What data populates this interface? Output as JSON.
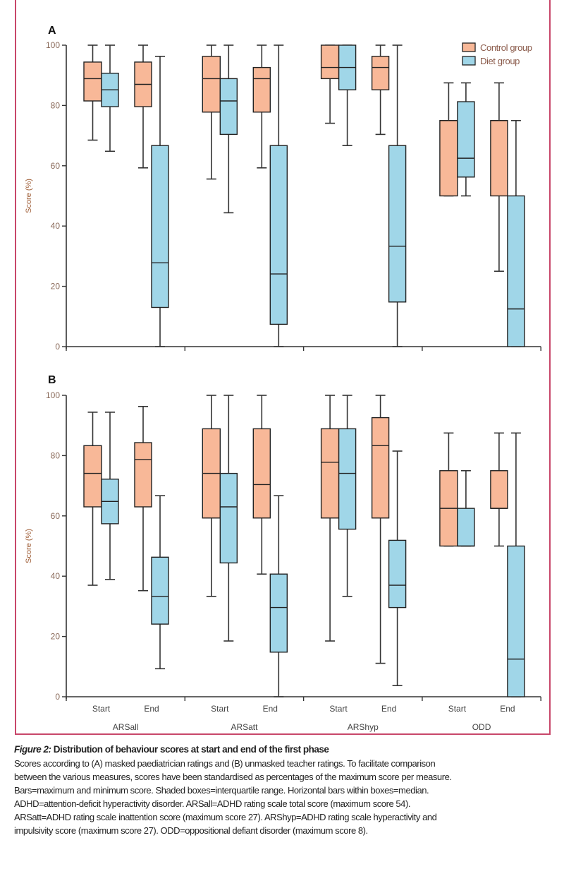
{
  "chart_data": [
    {
      "type": "boxplot",
      "panel_label": "A",
      "ylabel": "Score (%)",
      "ylim": [
        0,
        100
      ],
      "yticks": [
        "0",
        "20",
        "40",
        "60",
        "80",
        "100"
      ],
      "groups": [
        "ARSall",
        "ARSatt",
        "ARShyp",
        "ODD"
      ],
      "timepoints": [
        "Start",
        "End"
      ],
      "series": [
        {
          "name": "Control group",
          "color": "#F8B898",
          "boxes": [
            {
              "group": "ARSall",
              "time": "Start",
              "min": 68.5,
              "q1": 81.5,
              "median": 88.9,
              "q3": 94.4,
              "max": 100
            },
            {
              "group": "ARSall",
              "time": "End",
              "min": 59.3,
              "q1": 79.6,
              "median": 87,
              "q3": 94.4,
              "max": 100
            },
            {
              "group": "ARSatt",
              "time": "Start",
              "min": 55.6,
              "q1": 77.8,
              "median": 88.9,
              "q3": 96.3,
              "max": 100
            },
            {
              "group": "ARSatt",
              "time": "End",
              "min": 59.3,
              "q1": 77.8,
              "median": 88.9,
              "q3": 92.6,
              "max": 100
            },
            {
              "group": "ARShyp",
              "time": "Start",
              "min": 74.1,
              "q1": 88.9,
              "median": 92.6,
              "q3": 100,
              "max": 100
            },
            {
              "group": "ARShyp",
              "time": "End",
              "min": 70.4,
              "q1": 85.2,
              "median": 92.6,
              "q3": 96.3,
              "max": 100
            },
            {
              "group": "ODD",
              "time": "Start",
              "min": 50,
              "q1": 50,
              "median": 75,
              "q3": 75,
              "max": 87.5
            },
            {
              "group": "ODD",
              "time": "End",
              "min": 25,
              "q1": 50,
              "median": 75,
              "q3": 75,
              "max": 87.5
            }
          ]
        },
        {
          "name": "Diet group",
          "color": "#A0D6E8",
          "boxes": [
            {
              "group": "ARSall",
              "time": "Start",
              "min": 64.8,
              "q1": 79.6,
              "median": 85.2,
              "q3": 90.7,
              "max": 100
            },
            {
              "group": "ARSall",
              "time": "End",
              "min": 0,
              "q1": 13,
              "median": 27.8,
              "q3": 66.7,
              "max": 96.3
            },
            {
              "group": "ARSatt",
              "time": "Start",
              "min": 44.4,
              "q1": 70.4,
              "median": 81.5,
              "q3": 88.9,
              "max": 100
            },
            {
              "group": "ARSatt",
              "time": "End",
              "min": 0,
              "q1": 7.4,
              "median": 24.1,
              "q3": 66.7,
              "max": 100
            },
            {
              "group": "ARShyp",
              "time": "Start",
              "min": 66.7,
              "q1": 85.2,
              "median": 92.6,
              "q3": 100,
              "max": 100
            },
            {
              "group": "ARShyp",
              "time": "End",
              "min": 0,
              "q1": 14.8,
              "median": 33.3,
              "q3": 66.7,
              "max": 100
            },
            {
              "group": "ODD",
              "time": "Start",
              "min": 50,
              "q1": 56.25,
              "median": 62.5,
              "q3": 81.25,
              "max": 87.5
            },
            {
              "group": "ODD",
              "time": "End",
              "min": 0,
              "q1": 0,
              "median": 12.5,
              "q3": 50,
              "max": 75
            }
          ]
        }
      ],
      "legend": {
        "placement": "top-right",
        "entries": [
          "Control group",
          "Diet group"
        ]
      }
    },
    {
      "type": "boxplot",
      "panel_label": "B",
      "ylabel": "Score (%)",
      "ylim": [
        0,
        100
      ],
      "yticks": [
        "0",
        "20",
        "40",
        "60",
        "80",
        "100"
      ],
      "groups": [
        "ARSall",
        "ARSatt",
        "ARShyp",
        "ODD"
      ],
      "timepoints": [
        "Start",
        "End"
      ],
      "series": [
        {
          "name": "Control group",
          "color": "#F8B898",
          "boxes": [
            {
              "group": "ARSall",
              "time": "Start",
              "min": 37,
              "q1": 63,
              "median": 74.1,
              "q3": 83.3,
              "max": 94.4
            },
            {
              "group": "ARSall",
              "time": "End",
              "min": 35.2,
              "q1": 63,
              "median": 78.7,
              "q3": 84.3,
              "max": 96.3
            },
            {
              "group": "ARSatt",
              "time": "Start",
              "min": 33.3,
              "q1": 59.3,
              "median": 74.1,
              "q3": 88.9,
              "max": 100
            },
            {
              "group": "ARSatt",
              "time": "End",
              "min": 40.7,
              "q1": 59.3,
              "median": 70.4,
              "q3": 88.9,
              "max": 100
            },
            {
              "group": "ARShyp",
              "time": "Start",
              "min": 18.5,
              "q1": 59.3,
              "median": 77.8,
              "q3": 88.9,
              "max": 100
            },
            {
              "group": "ARShyp",
              "time": "End",
              "min": 11.1,
              "q1": 59.3,
              "median": 83.3,
              "q3": 92.6,
              "max": 100
            },
            {
              "group": "ODD",
              "time": "Start",
              "min": 50,
              "q1": 50,
              "median": 62.5,
              "q3": 75,
              "max": 87.5
            },
            {
              "group": "ODD",
              "time": "End",
              "min": 50,
              "q1": 62.5,
              "median": 62.5,
              "q3": 75,
              "max": 87.5
            }
          ]
        },
        {
          "name": "Diet group",
          "color": "#A0D6E8",
          "boxes": [
            {
              "group": "ARSall",
              "time": "Start",
              "min": 38.9,
              "q1": 57.4,
              "median": 64.8,
              "q3": 72.2,
              "max": 94.4
            },
            {
              "group": "ARSall",
              "time": "End",
              "min": 9.3,
              "q1": 24.1,
              "median": 33.3,
              "q3": 46.3,
              "max": 66.7
            },
            {
              "group": "ARSatt",
              "time": "Start",
              "min": 18.5,
              "q1": 44.4,
              "median": 63,
              "q3": 74.1,
              "max": 100
            },
            {
              "group": "ARSatt",
              "time": "End",
              "min": 0,
              "q1": 14.8,
              "median": 29.6,
              "q3": 40.7,
              "max": 66.7
            },
            {
              "group": "ARShyp",
              "time": "Start",
              "min": 33.3,
              "q1": 55.6,
              "median": 74.1,
              "q3": 88.9,
              "max": 100
            },
            {
              "group": "ARShyp",
              "time": "End",
              "min": 3.7,
              "q1": 29.6,
              "median": 37,
              "q3": 51.9,
              "max": 81.5
            },
            {
              "group": "ODD",
              "time": "Start",
              "min": 50,
              "q1": 50,
              "median": 50,
              "q3": 62.5,
              "max": 75
            },
            {
              "group": "ODD",
              "time": "End",
              "min": 0,
              "q1": 0,
              "median": 12.5,
              "q3": 50,
              "max": 87.5
            }
          ]
        }
      ]
    }
  ],
  "caption": {
    "figure_label": "Figure 2:",
    "title": "Distribution of behaviour scores at start and end of the first phase",
    "lines": [
      "Scores according to (A) masked paediatrician ratings and (B) unmasked teacher ratings. To facilitate comparison",
      "between the various measures, scores have been standardised as percentages of the maximum score per measure.",
      "Bars=maximum and minimum score. Shaded boxes=interquartile range. Horizontal bars within boxes=median.",
      "ADHD=attention-deficit hyperactivity disorder. ARSall=ADHD rating scale total score (maximum score 54).",
      "ARSatt=ADHD rating scale inattention score (maximum score 27). ARShyp=ADHD rating scale hyperactivity and",
      "impulsivity score (maximum score 27). ODD=oppositional defiant disorder (maximum score 8)."
    ]
  },
  "colors": {
    "frame": "#C8476A",
    "axis": "#333333",
    "tick_label": "#8A6A5A"
  }
}
